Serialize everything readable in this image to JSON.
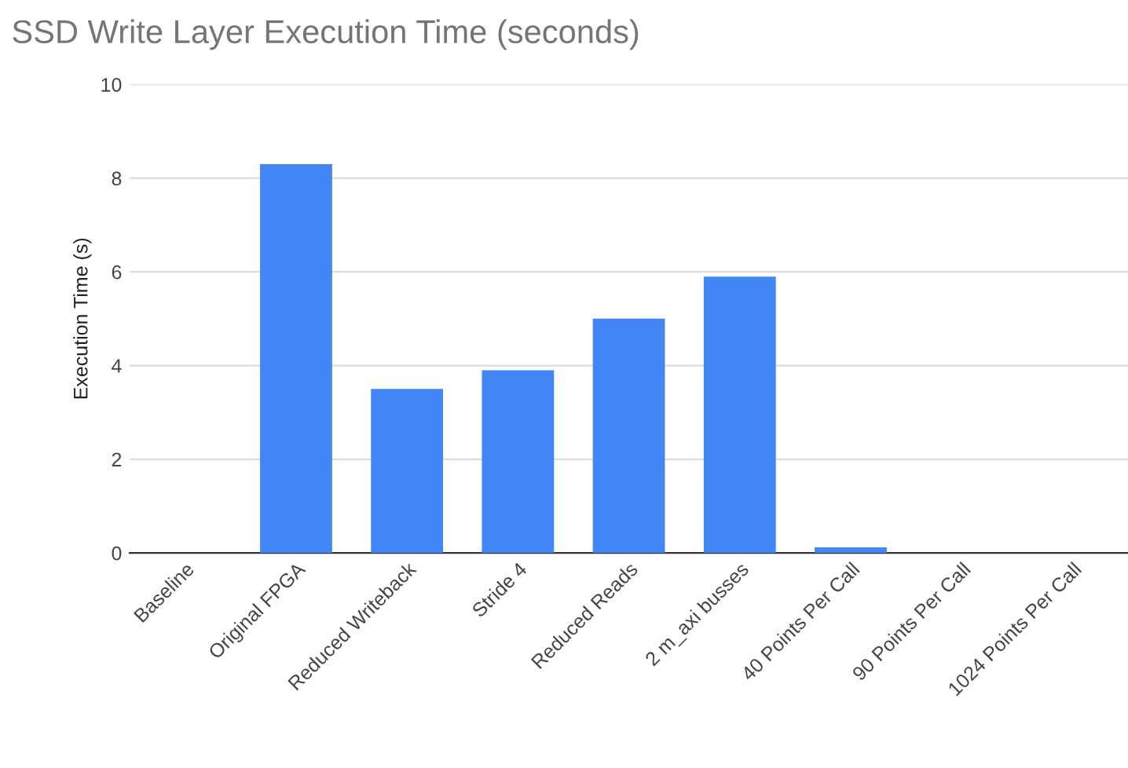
{
  "chart_data": {
    "type": "bar",
    "title": "SSD Write Layer Execution Time (seconds)",
    "ylabel": "Execution Time (s)",
    "categories": [
      "Baseline",
      "Original FPGA",
      "Reduced Writeback",
      "Stride 4",
      "Reduced Reads",
      "2 m_axi busses",
      "40 Points Per Call",
      "90 Points Per Call",
      "1024 Points Per Call"
    ],
    "values": [
      0,
      8.3,
      3.5,
      3.9,
      5.0,
      5.9,
      0.12,
      0,
      0
    ],
    "color": "#4285f4",
    "ylim": [
      0,
      10
    ],
    "yticks": [
      0,
      2,
      4,
      6,
      8,
      10
    ],
    "grid": "y"
  }
}
